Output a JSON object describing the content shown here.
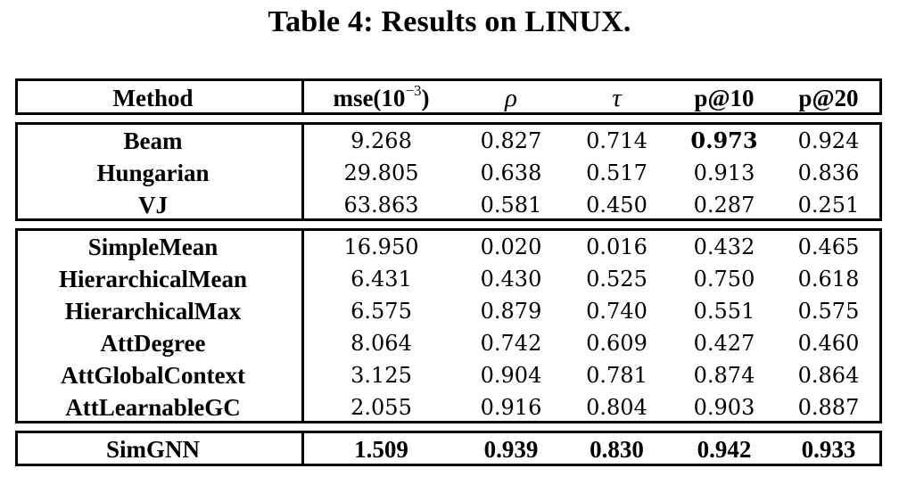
{
  "caption": "Table 4: Results on LINUX.",
  "columns": {
    "method": "Method",
    "mse_base": "mse(10",
    "mse_exp": "−3",
    "mse_close": ")",
    "rho": "ρ",
    "tau": "τ",
    "p10": "p@10",
    "p20": "p@20"
  },
  "groups": [
    {
      "rows": [
        {
          "method": "Beam",
          "mse": "9.268",
          "rho": "0.827",
          "tau": "0.714",
          "p10": "0.973",
          "p20": "0.924"
        },
        {
          "method": "Hungarian",
          "mse": "29.805",
          "rho": "0.638",
          "tau": "0.517",
          "p10": "0.913",
          "p20": "0.836"
        },
        {
          "method": "VJ",
          "mse": "63.863",
          "rho": "0.581",
          "tau": "0.450",
          "p10": "0.287",
          "p20": "0.251"
        }
      ]
    },
    {
      "rows": [
        {
          "method": "SimpleMean",
          "mse": "16.950",
          "rho": "0.020",
          "tau": "0.016",
          "p10": "0.432",
          "p20": "0.465"
        },
        {
          "method": "HierarchicalMean",
          "mse": "6.431",
          "rho": "0.430",
          "tau": "0.525",
          "p10": "0.750",
          "p20": "0.618"
        },
        {
          "method": "HierarchicalMax",
          "mse": "6.575",
          "rho": "0.879",
          "tau": "0.740",
          "p10": "0.551",
          "p20": "0.575"
        },
        {
          "method": "AttDegree",
          "mse": "8.064",
          "rho": "0.742",
          "tau": "0.609",
          "p10": "0.427",
          "p20": "0.460"
        },
        {
          "method": "AttGlobalContext",
          "mse": "3.125",
          "rho": "0.904",
          "tau": "0.781",
          "p10": "0.874",
          "p20": "0.864"
        },
        {
          "method": "AttLearnableGC",
          "mse": "2.055",
          "rho": "0.916",
          "tau": "0.804",
          "p10": "0.903",
          "p20": "0.887"
        }
      ]
    },
    {
      "rows": [
        {
          "method": "SimGNN",
          "mse": "1.509",
          "rho": "0.939",
          "tau": "0.830",
          "p10": "0.942",
          "p20": "0.933"
        }
      ]
    }
  ]
}
